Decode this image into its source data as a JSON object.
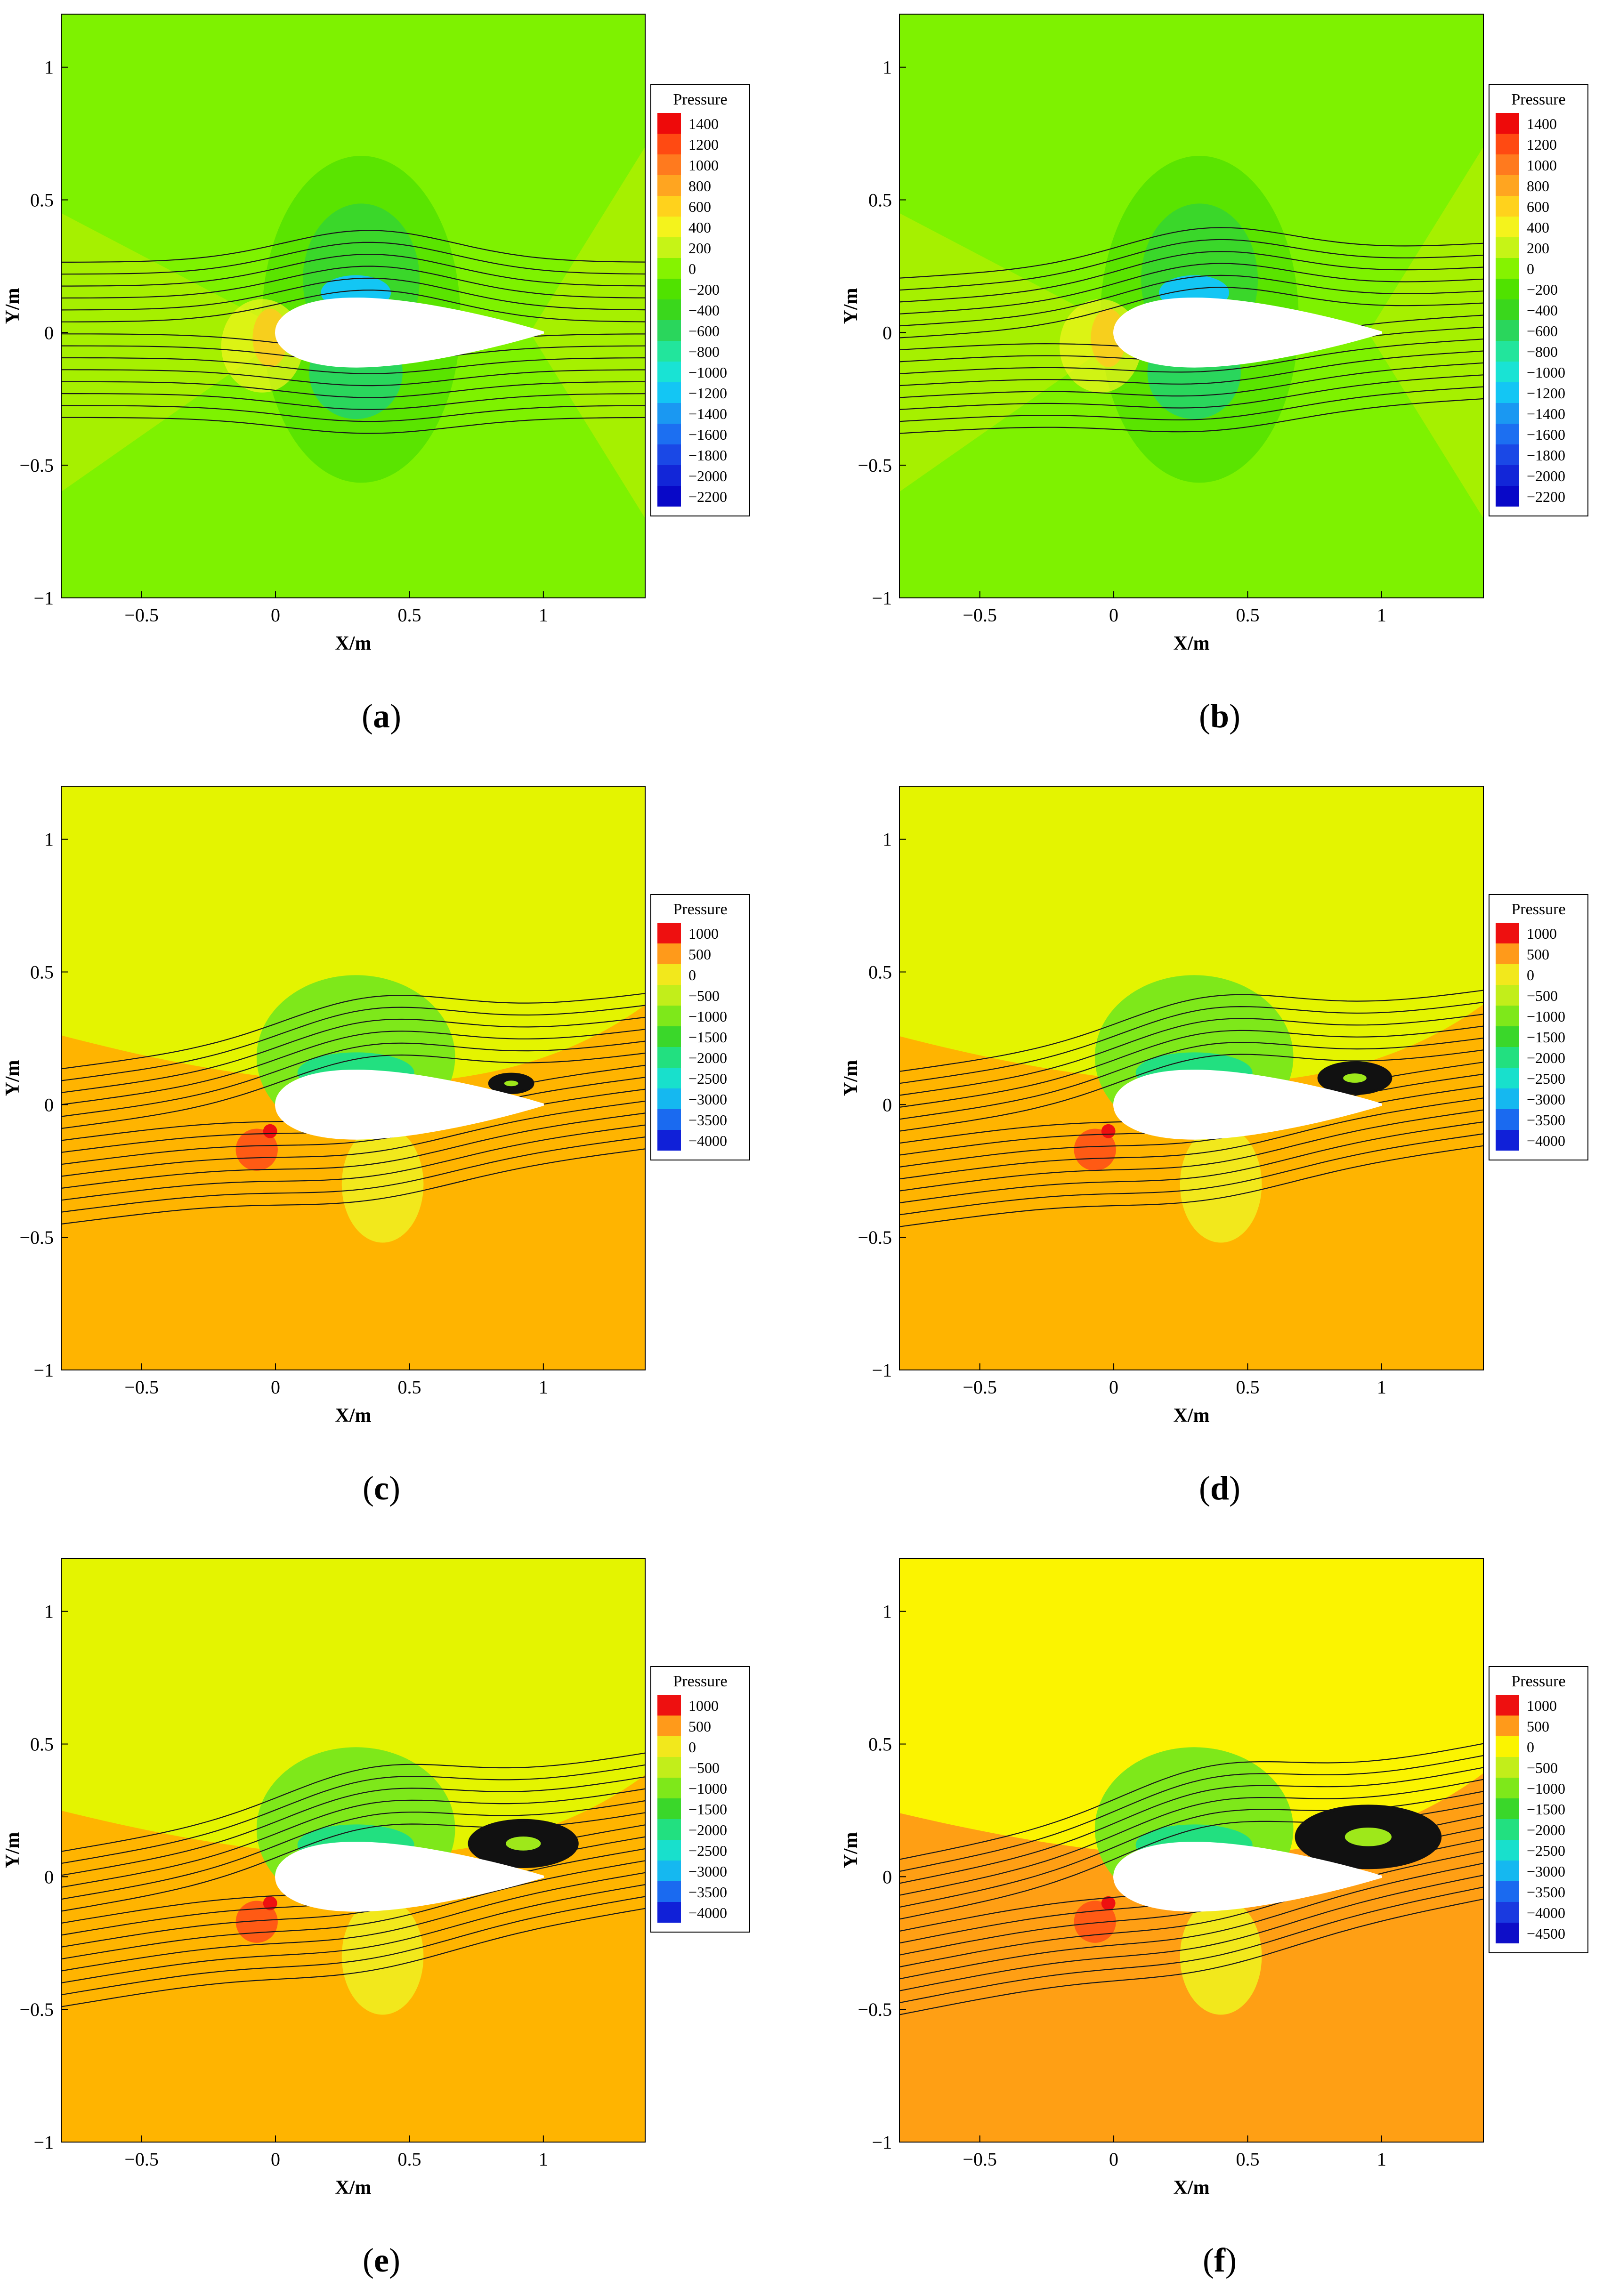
{
  "chart_data": [
    {
      "id": "a",
      "type": "heatmap",
      "caption": "a",
      "xlabel": "X/m",
      "ylabel": "Y/m",
      "xlim": [
        -0.8,
        1.38
      ],
      "ylim": [
        -1,
        1.2
      ],
      "xticks": [
        -0.5,
        0,
        0.5,
        1
      ],
      "xtick_labels": [
        "−0.5",
        "0",
        "0.5",
        "1"
      ],
      "yticks": [
        -1,
        -0.5,
        0,
        0.5,
        1
      ],
      "ytick_labels": [
        "−1",
        "−0.5",
        "0",
        "0.5",
        "1"
      ],
      "legend_title": "Pressure",
      "legend_placement": "right",
      "legend_levels": [
        1400,
        1200,
        1000,
        800,
        600,
        400,
        200,
        0,
        -200,
        -400,
        -600,
        -800,
        -1000,
        -1200,
        -1400,
        -1600,
        -1800,
        -2000,
        -2200
      ],
      "legend_colors": [
        "#ee0a0a",
        "#ff4a12",
        "#ff7a1e",
        "#ffa520",
        "#ffd21c",
        "#f4f31c",
        "#c6f416",
        "#85f300",
        "#50e200",
        "#3ad71c",
        "#2ad65c",
        "#22e59c",
        "#19e3d4",
        "#13c6f4",
        "#1a98f2",
        "#1c6ff1",
        "#1a48e6",
        "#1226d8",
        "#0808c8"
      ],
      "background": "#7ef200",
      "separation": "none",
      "streamline_tilt": 0.0
    },
    {
      "id": "b",
      "type": "heatmap",
      "caption": "b",
      "xlabel": "X/m",
      "ylabel": "Y/m",
      "xlim": [
        -0.8,
        1.38
      ],
      "ylim": [
        -1,
        1.2
      ],
      "xticks": [
        -0.5,
        0,
        0.5,
        1
      ],
      "xtick_labels": [
        "−0.5",
        "0",
        "0.5",
        "1"
      ],
      "yticks": [
        -1,
        -0.5,
        0,
        0.5,
        1
      ],
      "ytick_labels": [
        "−1",
        "−0.5",
        "0",
        "0.5",
        "1"
      ],
      "legend_title": "Pressure",
      "legend_placement": "right",
      "legend_levels": [
        1400,
        1200,
        1000,
        800,
        600,
        400,
        200,
        0,
        -200,
        -400,
        -600,
        -800,
        -1000,
        -1200,
        -1400,
        -1600,
        -1800,
        -2000,
        -2200
      ],
      "legend_colors": [
        "#ee0a0a",
        "#ff4a12",
        "#ff7a1e",
        "#ffa520",
        "#ffd21c",
        "#f4f31c",
        "#c6f416",
        "#85f300",
        "#50e200",
        "#3ad71c",
        "#2ad65c",
        "#22e59c",
        "#19e3d4",
        "#13c6f4",
        "#1a98f2",
        "#1c6ff1",
        "#1a48e6",
        "#1226d8",
        "#0808c8"
      ],
      "background": "#7ef200",
      "separation": "none",
      "streamline_tilt": 0.06
    },
    {
      "id": "c",
      "type": "heatmap",
      "caption": "c",
      "xlabel": "X/m",
      "ylabel": "Y/m",
      "xlim": [
        -0.8,
        1.38
      ],
      "ylim": [
        -1,
        1.2
      ],
      "xticks": [
        -0.5,
        0,
        0.5,
        1
      ],
      "xtick_labels": [
        "−0.5",
        "0",
        "0.5",
        "1"
      ],
      "yticks": [
        -1,
        -0.5,
        0,
        0.5,
        1
      ],
      "ytick_labels": [
        "−1",
        "−0.5",
        "0",
        "0.5",
        "1"
      ],
      "legend_title": "Pressure",
      "legend_placement": "right",
      "legend_levels": [
        1000,
        500,
        0,
        -500,
        -1000,
        -1500,
        -2000,
        -2500,
        -3000,
        -3500,
        -4000
      ],
      "legend_colors": [
        "#ee1010",
        "#ff9a1a",
        "#f2e81c",
        "#c2ee1a",
        "#7ee81a",
        "#3ad72a",
        "#22e080",
        "#18e0cc",
        "#15b8f0",
        "#1a6af0",
        "#1020d8"
      ],
      "background": "#e4f400",
      "lower_background": "#ffb400",
      "separation": "small",
      "streamline_tilt": 0.13
    },
    {
      "id": "d",
      "type": "heatmap",
      "caption": "d",
      "xlabel": "X/m",
      "ylabel": "Y/m",
      "xlim": [
        -0.8,
        1.38
      ],
      "ylim": [
        -1,
        1.2
      ],
      "xticks": [
        -0.5,
        0,
        0.5,
        1
      ],
      "xtick_labels": [
        "−0.5",
        "0",
        "0.5",
        "1"
      ],
      "yticks": [
        -1,
        -0.5,
        0,
        0.5,
        1
      ],
      "ytick_labels": [
        "−1",
        "−0.5",
        "0",
        "0.5",
        "1"
      ],
      "legend_title": "Pressure",
      "legend_placement": "right",
      "legend_levels": [
        1000,
        500,
        0,
        -500,
        -1000,
        -1500,
        -2000,
        -2500,
        -3000,
        -3500,
        -4000
      ],
      "legend_colors": [
        "#ee1010",
        "#ff9a1a",
        "#f2e81c",
        "#c2ee1a",
        "#7ee81a",
        "#3ad72a",
        "#22e080",
        "#18e0cc",
        "#15b8f0",
        "#1a6af0",
        "#1020d8"
      ],
      "background": "#e4f400",
      "lower_background": "#ffb400",
      "separation": "medium",
      "streamline_tilt": 0.14
    },
    {
      "id": "e",
      "type": "heatmap",
      "caption": "e",
      "xlabel": "X/m",
      "ylabel": "Y/m",
      "xlim": [
        -0.8,
        1.38
      ],
      "ylim": [
        -1,
        1.2
      ],
      "xticks": [
        -0.5,
        0,
        0.5,
        1
      ],
      "xtick_labels": [
        "−0.5",
        "0",
        "0.5",
        "1"
      ],
      "yticks": [
        -1,
        -0.5,
        0,
        0.5,
        1
      ],
      "ytick_labels": [
        "−1",
        "−0.5",
        "0",
        "0.5",
        "1"
      ],
      "legend_title": "Pressure",
      "legend_placement": "right",
      "legend_levels": [
        1000,
        500,
        0,
        -500,
        -1000,
        -1500,
        -2000,
        -2500,
        -3000,
        -3500,
        -4000
      ],
      "legend_colors": [
        "#ee1010",
        "#ff9a1a",
        "#f2e81c",
        "#c2ee1a",
        "#7ee81a",
        "#3ad72a",
        "#22e080",
        "#18e0cc",
        "#15b8f0",
        "#1a6af0",
        "#1020d8"
      ],
      "background": "#e4f400",
      "lower_background": "#ffb400",
      "separation": "large",
      "streamline_tilt": 0.17
    },
    {
      "id": "f",
      "type": "heatmap",
      "caption": "f",
      "xlabel": "X/m",
      "ylabel": "Y/m",
      "xlim": [
        -0.8,
        1.38
      ],
      "ylim": [
        -1,
        1.2
      ],
      "xticks": [
        -0.5,
        0,
        0.5,
        1
      ],
      "xtick_labels": [
        "−0.5",
        "0",
        "0.5",
        "1"
      ],
      "yticks": [
        -1,
        -0.5,
        0,
        0.5,
        1
      ],
      "ytick_labels": [
        "−1",
        "−0.5",
        "0",
        "0.5",
        "1"
      ],
      "legend_title": "Pressure",
      "legend_placement": "right",
      "legend_levels": [
        1000,
        500,
        0,
        -500,
        -1000,
        -1500,
        -2000,
        -2500,
        -3000,
        -3500,
        -4000,
        -4500
      ],
      "legend_colors": [
        "#ee1010",
        "#ff9a1a",
        "#fbf400",
        "#c2ee1a",
        "#7ee81a",
        "#3ad72a",
        "#22e080",
        "#18e0cc",
        "#15b8f0",
        "#1a6af0",
        "#1a3ae0",
        "#0e0ec8"
      ],
      "background": "#fbf400",
      "lower_background": "#ff9f14",
      "separation": "xlarge",
      "streamline_tilt": 0.2
    }
  ]
}
